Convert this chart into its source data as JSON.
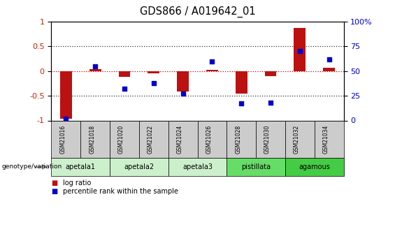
{
  "title": "GDS866 / A019642_01",
  "samples": [
    "GSM21016",
    "GSM21018",
    "GSM21020",
    "GSM21022",
    "GSM21024",
    "GSM21026",
    "GSM21028",
    "GSM21030",
    "GSM21032",
    "GSM21034"
  ],
  "log_ratio": [
    -0.97,
    0.04,
    -0.12,
    -0.05,
    -0.42,
    0.03,
    -0.46,
    -0.1,
    0.88,
    0.07
  ],
  "percentile_rank": [
    2,
    55,
    32,
    38,
    27,
    60,
    17,
    18,
    70,
    62
  ],
  "groups": [
    {
      "name": "apetala1",
      "count": 2,
      "color": "#ccf0cc"
    },
    {
      "name": "apetala2",
      "count": 2,
      "color": "#ccf0cc"
    },
    {
      "name": "apetala3",
      "count": 2,
      "color": "#ccf0cc"
    },
    {
      "name": "pistillata",
      "count": 2,
      "color": "#66dd66"
    },
    {
      "name": "agamous",
      "count": 2,
      "color": "#44cc44"
    }
  ],
  "ylim_left": [
    -1,
    1
  ],
  "ylim_right": [
    0,
    100
  ],
  "yticks_left": [
    -1,
    -0.5,
    0,
    0.5,
    1
  ],
  "yticks_right": [
    0,
    25,
    50,
    75,
    100
  ],
  "bar_color": "#bb1111",
  "dot_color": "#0000cc",
  "zero_line_color": "#cc0000",
  "dotted_line_color": "#333333",
  "tick_label_color_left": "#cc2200",
  "tick_label_color_right": "#0000cc",
  "legend_bar_label": "log ratio",
  "legend_dot_label": "percentile rank within the sample",
  "sample_box_color": "#cccccc",
  "bar_width": 0.4
}
